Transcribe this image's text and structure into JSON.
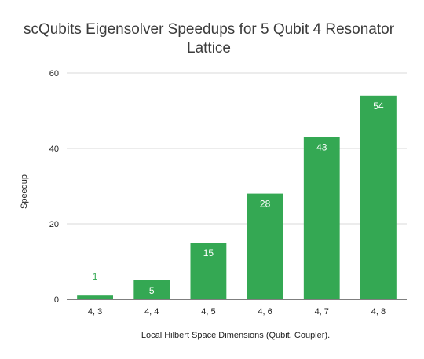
{
  "chart_data": {
    "type": "bar",
    "title_lines": [
      "scQubits Eigensolver Speedups for 5 Qubit 4 Resonator",
      "Lattice"
    ],
    "categories": [
      "4, 3",
      "4, 4",
      "4, 5",
      "4, 6",
      "4, 7",
      "4, 8"
    ],
    "series": [
      {
        "values": [
          1,
          5,
          15,
          28,
          43,
          54
        ]
      }
    ],
    "data_labels": [
      "1",
      "5",
      "15",
      "28",
      "43",
      "54"
    ],
    "xlabel": "Local Hilbert Space Dimensions (Qubit, Coupler).",
    "ylabel": "Speedup",
    "ylim": [
      0,
      60
    ],
    "yticks": [
      0,
      20,
      40,
      60
    ],
    "grid": true,
    "legend": "none",
    "colors": {
      "bar": "#34a853",
      "label_inside": "#ffffff",
      "label_outside": "#34a853"
    }
  }
}
